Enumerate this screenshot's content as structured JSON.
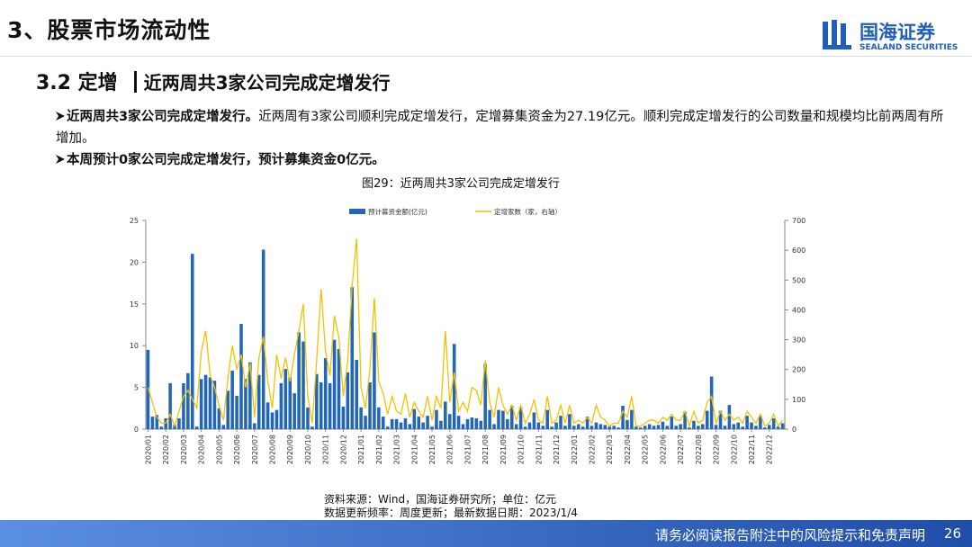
{
  "header": {
    "title": "3、股票市场流动性",
    "logo": "国海证券",
    "logo_en": "SEALAND SECURITIES"
  },
  "section": {
    "number": "3.2 定增",
    "subtitle": "近两周共3家公司完成定增发行"
  },
  "bullets": [
    {
      "bold": "近两周共3家公司完成定增发行。",
      "text": "近两周有3家公司顺利完成定增发行，定增募集资金为27.19亿元。顺利完成定增发行的公司数量和规模均比前两周有所增加。"
    },
    {
      "bold": "本周预计0家公司完成定增发行，预计募集资金0亿元。"
    }
  ],
  "chart_data": {
    "type": "bar_line",
    "title": "图29：近两周共3家公司完成定增发行",
    "categories": [
      "2020/01",
      null,
      null,
      null,
      "2020/02",
      null,
      null,
      null,
      "2020/03",
      null,
      null,
      null,
      "2020/04",
      null,
      null,
      null,
      "2020/05",
      null,
      null,
      null,
      "2020/06",
      null,
      null,
      null,
      "2020/07",
      null,
      null,
      null,
      "2020/08",
      null,
      null,
      null,
      "2020/09",
      null,
      null,
      null,
      "2020/10",
      null,
      null,
      null,
      "2020/11",
      null,
      null,
      null,
      "2020/12",
      null,
      null,
      null,
      "2021/01",
      null,
      null,
      null,
      "2021/02",
      null,
      null,
      null,
      "2021/03",
      null,
      null,
      null,
      "2021/04",
      null,
      null,
      null,
      "2021/05",
      null,
      null,
      null,
      "2021/06",
      null,
      null,
      null,
      "2021/07",
      null,
      null,
      null,
      "2021/08",
      null,
      null,
      null,
      "2021/09",
      null,
      null,
      null,
      "2021/10",
      null,
      null,
      null,
      "2021/11",
      null,
      null,
      null,
      "2021/12",
      null,
      null,
      null,
      "2022/01",
      null,
      null,
      null,
      "2022/02",
      null,
      null,
      null,
      "2022/03",
      null,
      null,
      null,
      "2022/04",
      null,
      null,
      null,
      "2022/05",
      null,
      null,
      null,
      "2022/06",
      null,
      null,
      null,
      "2022/07",
      null,
      null,
      null,
      "2022/08",
      null,
      null,
      null,
      "2022/09",
      null,
      null,
      null,
      "2022/10",
      null,
      null,
      null,
      "2022/11",
      null,
      null,
      null,
      "2022/12",
      null,
      null,
      null
    ],
    "series": [
      {
        "name": "预计募资金额(亿元)",
        "color": "#2266b8",
        "axis": "y",
        "values": [
          9.5,
          1.5,
          1.7,
          0.3,
          1.3,
          5.5,
          0.5,
          1.3,
          5.5,
          6.7,
          21,
          0.3,
          6,
          6.5,
          6.2,
          5.8,
          2.5,
          0.5,
          4.6,
          7,
          4,
          12.6,
          6,
          8,
          0.7,
          6.5,
          21.5,
          3.2,
          2,
          2.3,
          5.5,
          7.2,
          6.2,
          4.3,
          11.6,
          10.5,
          2.6,
          0.3,
          6.6,
          5.6,
          8.5,
          5.5,
          10.7,
          9.6,
          2.7,
          6.8,
          17,
          8.3,
          2.6,
          1.6,
          5.6,
          11.6,
          2.6,
          1.5,
          0.3,
          1.2,
          1.2,
          0.8,
          1.3,
          0.6,
          2.4,
          1.5,
          0.8,
          1.6,
          0.3,
          2.3,
          1,
          3.3,
          1.8,
          10.2,
          1.6,
          0.6,
          1.2,
          1.4,
          1.3,
          1,
          7.8,
          2.3,
          0.6,
          2.3,
          2.2,
          1.2,
          2.8,
          0.6,
          2.6,
          0.3,
          0.8,
          2,
          0.8,
          0.4,
          2.3,
          0.3,
          0.8,
          1.6,
          0.4,
          1.8,
          0.4,
          0.6,
          0.3,
          1.5,
          0.4,
          0.8,
          0.6,
          0.5,
          0.3,
          0.4,
          0.2,
          2.8,
          1.1,
          2.3,
          0.3,
          0.2,
          0.4,
          0.6,
          0.4,
          0.5,
          0.9,
          0.4,
          1.5,
          0.4,
          0.6,
          2.1,
          0.2,
          1,
          0.4,
          0.6,
          2.2,
          6.3,
          0.5,
          2.2,
          0.4,
          2.9,
          0.6,
          0.8,
          0.3,
          1.6,
          0.8,
          0.4,
          1.6,
          0.2,
          0.5,
          1.3,
          0.3,
          0.7
        ]
      },
      {
        "name": "定增家数（家，右轴）",
        "color": "#f2c200",
        "axis": "y2",
        "values": [
          140,
          90,
          40,
          20,
          20,
          50,
          10,
          60,
          110,
          130,
          100,
          70,
          260,
          330,
          180,
          140,
          80,
          30,
          170,
          280,
          200,
          250,
          140,
          220,
          40,
          240,
          310,
          160,
          70,
          250,
          170,
          240,
          160,
          250,
          330,
          420,
          110,
          20,
          230,
          470,
          260,
          180,
          380,
          310,
          110,
          230,
          480,
          640,
          140,
          70,
          200,
          440,
          160,
          120,
          50,
          110,
          60,
          50,
          120,
          40,
          90,
          60,
          40,
          110,
          30,
          110,
          70,
          330,
          90,
          190,
          60,
          90,
          60,
          140,
          130,
          80,
          230,
          90,
          40,
          140,
          80,
          50,
          80,
          30,
          80,
          20,
          50,
          100,
          30,
          20,
          110,
          20,
          30,
          80,
          20,
          80,
          20,
          30,
          20,
          40,
          20,
          80,
          40,
          30,
          10,
          20,
          20,
          60,
          40,
          110,
          10,
          10,
          20,
          30,
          30,
          20,
          40,
          30,
          50,
          30,
          30,
          60,
          10,
          60,
          20,
          30,
          90,
          110,
          20,
          60,
          30,
          50,
          30,
          40,
          20,
          60,
          40,
          20,
          50,
          10,
          20,
          50,
          10,
          30
        ]
      }
    ],
    "ylim": [
      0,
      25
    ],
    "yticks": [
      0,
      5,
      10,
      15,
      20,
      25
    ],
    "y2lim": [
      0,
      700
    ],
    "y2ticks": [
      0,
      100,
      200,
      300,
      400,
      500,
      600,
      700
    ],
    "legend": "top"
  },
  "source": [
    "资料来源：Wind，国海证券研究所；单位：亿元",
    "数据更新频率：周度更新；最新数据日期：2023/1/4"
  ],
  "footer": {
    "disclaimer": "请务必阅读报告附注中的风险提示和免责声明",
    "page": "26"
  }
}
